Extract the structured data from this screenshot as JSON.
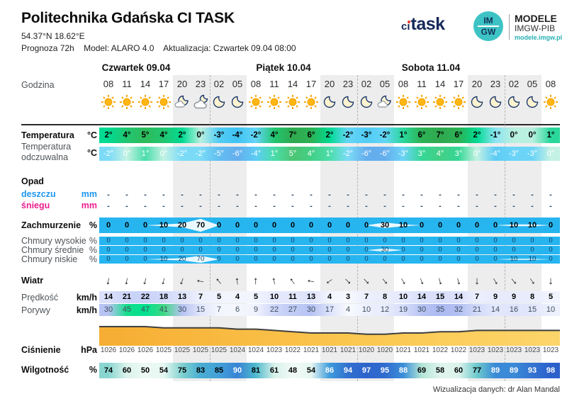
{
  "header": {
    "title": "Politechnika Gdańska CI TASK",
    "coords": "54.37°N  18.62°E",
    "prognoza": "Prognoza 72h",
    "model_label": "Model:  ALARO 4.0",
    "update_label": "Aktualizacja:  Czwartek 09.04 08:00"
  },
  "logos": {
    "citask_ci": "ci",
    "citask_task": "task",
    "imgw_top": "IM",
    "imgw_bottom": "GW",
    "modele_title": "MODELE",
    "modele_sub": "IMGW-PIB",
    "modele_url": "modele.imgw.pl"
  },
  "labels": {
    "godzina": "Godzina",
    "temperatura": "Temperatura",
    "temp_unit": "°C",
    "odczuwalna_1": "Temperatura",
    "odczuwalna_2": "odczuwalna",
    "opad": "Opad",
    "deszczu": "deszczu",
    "sniegu": "śniegu",
    "mm": "mm",
    "zachmurzenie": "Zachmurzenie",
    "pct": "%",
    "chmury_wysokie": "Chmury wysokie",
    "chmury_srednie": "Chmury średnie",
    "chmury_niskie": "Chmury niskie",
    "wiatr": "Wiatr",
    "predkosc": "Prędkość",
    "porywy": "Porywy",
    "kmh": "km/h",
    "cisnienie": "Ciśnienie",
    "hpa": "hPa",
    "wilgotnosc": "Wilgotność"
  },
  "footer": "Wizualizacja danych: dr Alan Mandal",
  "chart_data": {
    "type": "table",
    "title": "Politechnika Gdańska CI TASK",
    "subtitle": "Prognoza 72h, Model ALARO 4.0, aktualizacja Czwartek 09.04 08:00",
    "days": [
      {
        "label": "Czwartek 09.04",
        "col_start": 0,
        "col_count": 6
      },
      {
        "label": "Piątek 10.04",
        "col_start": 6,
        "col_count": 8
      },
      {
        "label": "Sobota 11.04",
        "col_start": 14,
        "col_count": 8
      }
    ],
    "hours": [
      "08",
      "11",
      "14",
      "17",
      "20",
      "23",
      "02",
      "05",
      "08",
      "11",
      "14",
      "17",
      "20",
      "23",
      "02",
      "05",
      "08",
      "11",
      "14",
      "17",
      "20",
      "23",
      "02",
      "05",
      "08"
    ],
    "icons": [
      "sun",
      "sun",
      "sun",
      "sun",
      "moon-cloud",
      "cloud-moon",
      "moon",
      "moon",
      "sun",
      "sun",
      "sun",
      "sun",
      "moon",
      "moon",
      "moon",
      "moon-cloud",
      "sun",
      "sun",
      "sun",
      "sun",
      "moon",
      "moon",
      "moon",
      "moon",
      "sun"
    ],
    "night_col_ranges": [
      [
        4,
        7
      ],
      [
        12,
        15
      ],
      [
        20,
        23
      ]
    ],
    "series": {
      "temperatura_c": [
        2,
        4,
        5,
        4,
        2,
        0,
        -3,
        -4,
        -2,
        4,
        7,
        6,
        2,
        -2,
        -3,
        -2,
        1,
        6,
        7,
        6,
        2,
        -1,
        0,
        0,
        1
      ],
      "odczuwalna_c": [
        -2,
        0,
        1,
        0,
        -2,
        -2,
        -5,
        -6,
        -4,
        1,
        5,
        4,
        1,
        -2,
        -6,
        -6,
        -3,
        3,
        4,
        3,
        0,
        -4,
        -3,
        -3,
        0
      ],
      "opad_deszczu_mm": [
        "-",
        "-",
        "-",
        "-",
        "-",
        "-",
        "-",
        "-",
        "-",
        "-",
        "-",
        "-",
        "-",
        "-",
        "-",
        "-",
        "-",
        "-",
        "-",
        "-",
        "-",
        "-",
        "-",
        "-",
        "-"
      ],
      "opad_sniegu_mm": [
        "-",
        "-",
        "-",
        "-",
        "-",
        "-",
        "-",
        "-",
        "-",
        "-",
        "-",
        "-",
        "-",
        "-",
        "-",
        "-",
        "-",
        "-",
        "-",
        "-",
        "-",
        "-",
        "-",
        "-",
        "-"
      ],
      "zachmurzenie_pct": [
        0,
        0,
        0,
        10,
        20,
        70,
        0,
        0,
        0,
        0,
        0,
        0,
        0,
        0,
        0,
        30,
        10,
        0,
        0,
        0,
        0,
        0,
        10,
        10,
        0
      ],
      "chmury_wysokie_pct": [
        0,
        0,
        0,
        0,
        0,
        0,
        0,
        0,
        0,
        0,
        0,
        0,
        0,
        0,
        0,
        0,
        0,
        0,
        0,
        0,
        0,
        0,
        0,
        0,
        0
      ],
      "chmury_srednie_pct": [
        0,
        0,
        0,
        0,
        0,
        0,
        0,
        0,
        0,
        0,
        0,
        0,
        0,
        0,
        0,
        30,
        0,
        0,
        0,
        0,
        0,
        0,
        0,
        0,
        0
      ],
      "chmury_niskie_pct": [
        0,
        0,
        0,
        10,
        20,
        70,
        0,
        0,
        0,
        0,
        0,
        0,
        0,
        0,
        0,
        0,
        0,
        0,
        0,
        0,
        0,
        0,
        10,
        10,
        0
      ],
      "wiatr_kierunek_deg": [
        190,
        190,
        195,
        195,
        200,
        280,
        320,
        355,
        0,
        350,
        325,
        280,
        235,
        135,
        135,
        140,
        150,
        160,
        165,
        165,
        180,
        150,
        140,
        145,
        180
      ],
      "predkosc_kmh": [
        14,
        21,
        22,
        18,
        13,
        7,
        5,
        4,
        5,
        10,
        11,
        13,
        4,
        3,
        7,
        8,
        10,
        14,
        15,
        14,
        7,
        9,
        9,
        8,
        5
      ],
      "porywy_kmh": [
        30,
        45,
        47,
        41,
        30,
        15,
        7,
        6,
        9,
        22,
        27,
        30,
        17,
        4,
        10,
        12,
        19,
        30,
        35,
        32,
        21,
        14,
        16,
        15,
        10
      ],
      "cisnienie_hpa": [
        1026,
        1026,
        1026,
        1025,
        1025,
        1025,
        1025,
        1024,
        1024,
        1023,
        1022,
        1021,
        1021,
        1021,
        1020,
        1020,
        1021,
        1021,
        1022,
        1022,
        1023,
        1023,
        1023,
        1023,
        1023
      ],
      "wilgotnosc_pct": [
        74,
        60,
        50,
        54,
        75,
        83,
        85,
        90,
        81,
        61,
        48,
        54,
        86,
        94,
        97,
        95,
        88,
        69,
        58,
        60,
        77,
        89,
        89,
        93,
        98
      ]
    }
  },
  "colors": {
    "cloud_strip": "#27b5f0",
    "cloud_subtext": "#123a5e",
    "night_band": "#ededed",
    "rain_label": "#1e96f0",
    "snow_label": "#ec1f8f",
    "dash_value": "#2b4a66",
    "pressure_line": "#3f3f3f",
    "pressure_fill_left": "#f6ad33",
    "pressure_fill_mid": "#fbc74f",
    "pressure_fill_right": "#fcd56a",
    "sun_fill": "#ffb612",
    "sun_stroke": "#f5a300",
    "moon_fill": "#fdf3cf",
    "moon_stroke": "#1e3a6e",
    "brand_navy": "#16295a",
    "brand_teal": "#3ec3c5",
    "temp_scale": [
      [
        -6,
        "#4aa0ea"
      ],
      [
        -4,
        "#40c3f3"
      ],
      [
        -2,
        "#64d5f6"
      ],
      [
        -1,
        "#8ce4f2"
      ],
      [
        0,
        "#b9f0df"
      ],
      [
        1,
        "#2ad79b"
      ],
      [
        2,
        "#00da92"
      ],
      [
        4,
        "#22c671"
      ],
      [
        5,
        "#2dbb5b"
      ],
      [
        7,
        "#2fa94f"
      ]
    ],
    "wind_scale": [
      [
        0,
        "#ffffff"
      ],
      [
        4,
        "#f3f5fe"
      ],
      [
        8,
        "#e9edfc"
      ],
      [
        13,
        "#dde3fb"
      ],
      [
        18,
        "#d2daf9"
      ],
      [
        22,
        "#c9d2f8"
      ],
      [
        30,
        "#b7c3f3"
      ]
    ],
    "gust_scale": [
      [
        0,
        "#ffffff"
      ],
      [
        6,
        "#f5f7fe"
      ],
      [
        12,
        "#e8ecfc"
      ],
      [
        20,
        "#d5dcfa"
      ],
      [
        30,
        "#b7c3f3"
      ],
      [
        36,
        "#a9b8f1"
      ],
      [
        41,
        "#3fd884"
      ],
      [
        47,
        "#00e18f"
      ]
    ],
    "humidity_scale": [
      [
        45,
        "#f6fcfa"
      ],
      [
        60,
        "#dcf3ec"
      ],
      [
        70,
        "#aee3d4"
      ],
      [
        80,
        "#52bfc9"
      ],
      [
        86,
        "#3f9bdb"
      ],
      [
        92,
        "#3478d3"
      ],
      [
        98,
        "#2c60cb"
      ]
    ]
  }
}
